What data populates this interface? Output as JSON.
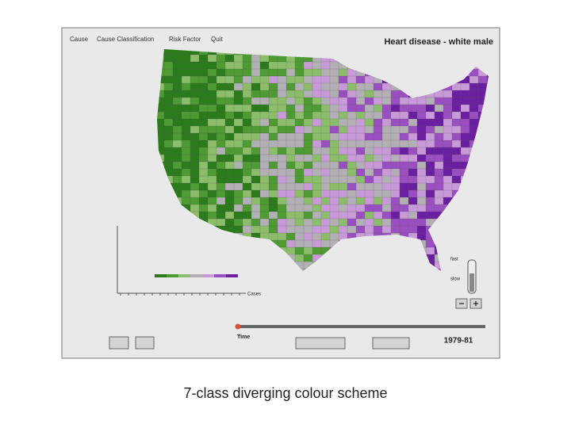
{
  "menu": [
    "Cause",
    "Cause Classification",
    "Risk Factor",
    "Quit"
  ],
  "title": "Heart disease -  white male",
  "axis": {
    "x_label": "Cases"
  },
  "speed": {
    "fast": "fast",
    "slow": "slow"
  },
  "timeline": {
    "label": "Time",
    "period": "1979-81"
  },
  "caption": "7-class diverging colour scheme"
}
